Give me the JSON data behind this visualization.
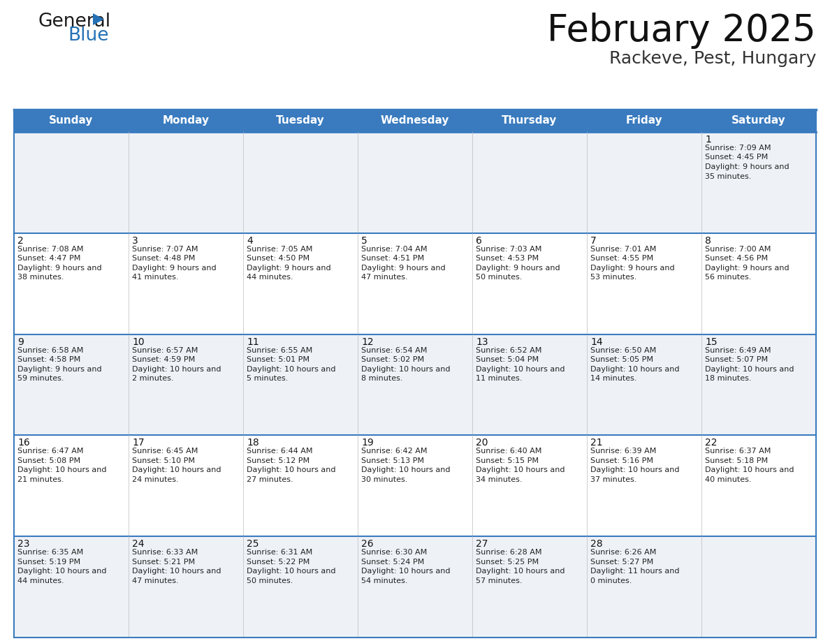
{
  "title": "February 2025",
  "subtitle": "Rackeve, Pest, Hungary",
  "header_bg": "#3a7bbf",
  "header_text": "#ffffff",
  "row_bg_even": "#eef2f7",
  "row_bg_odd": "#ffffff",
  "border_color": "#3a7bbf",
  "cell_border_color": "#3a7bbf",
  "day_headers": [
    "Sunday",
    "Monday",
    "Tuesday",
    "Wednesday",
    "Thursday",
    "Friday",
    "Saturday"
  ],
  "calendar_data": [
    [
      null,
      null,
      null,
      null,
      null,
      null,
      {
        "day": 1,
        "sunrise": "7:09 AM",
        "sunset": "4:45 PM",
        "daylight": "9 hours and 35 minutes."
      }
    ],
    [
      {
        "day": 2,
        "sunrise": "7:08 AM",
        "sunset": "4:47 PM",
        "daylight": "9 hours and 38 minutes."
      },
      {
        "day": 3,
        "sunrise": "7:07 AM",
        "sunset": "4:48 PM",
        "daylight": "9 hours and 41 minutes."
      },
      {
        "day": 4,
        "sunrise": "7:05 AM",
        "sunset": "4:50 PM",
        "daylight": "9 hours and 44 minutes."
      },
      {
        "day": 5,
        "sunrise": "7:04 AM",
        "sunset": "4:51 PM",
        "daylight": "9 hours and 47 minutes."
      },
      {
        "day": 6,
        "sunrise": "7:03 AM",
        "sunset": "4:53 PM",
        "daylight": "9 hours and 50 minutes."
      },
      {
        "day": 7,
        "sunrise": "7:01 AM",
        "sunset": "4:55 PM",
        "daylight": "9 hours and 53 minutes."
      },
      {
        "day": 8,
        "sunrise": "7:00 AM",
        "sunset": "4:56 PM",
        "daylight": "9 hours and 56 minutes."
      }
    ],
    [
      {
        "day": 9,
        "sunrise": "6:58 AM",
        "sunset": "4:58 PM",
        "daylight": "9 hours and 59 minutes."
      },
      {
        "day": 10,
        "sunrise": "6:57 AM",
        "sunset": "4:59 PM",
        "daylight": "10 hours and 2 minutes."
      },
      {
        "day": 11,
        "sunrise": "6:55 AM",
        "sunset": "5:01 PM",
        "daylight": "10 hours and 5 minutes."
      },
      {
        "day": 12,
        "sunrise": "6:54 AM",
        "sunset": "5:02 PM",
        "daylight": "10 hours and 8 minutes."
      },
      {
        "day": 13,
        "sunrise": "6:52 AM",
        "sunset": "5:04 PM",
        "daylight": "10 hours and 11 minutes."
      },
      {
        "day": 14,
        "sunrise": "6:50 AM",
        "sunset": "5:05 PM",
        "daylight": "10 hours and 14 minutes."
      },
      {
        "day": 15,
        "sunrise": "6:49 AM",
        "sunset": "5:07 PM",
        "daylight": "10 hours and 18 minutes."
      }
    ],
    [
      {
        "day": 16,
        "sunrise": "6:47 AM",
        "sunset": "5:08 PM",
        "daylight": "10 hours and 21 minutes."
      },
      {
        "day": 17,
        "sunrise": "6:45 AM",
        "sunset": "5:10 PM",
        "daylight": "10 hours and 24 minutes."
      },
      {
        "day": 18,
        "sunrise": "6:44 AM",
        "sunset": "5:12 PM",
        "daylight": "10 hours and 27 minutes."
      },
      {
        "day": 19,
        "sunrise": "6:42 AM",
        "sunset": "5:13 PM",
        "daylight": "10 hours and 30 minutes."
      },
      {
        "day": 20,
        "sunrise": "6:40 AM",
        "sunset": "5:15 PM",
        "daylight": "10 hours and 34 minutes."
      },
      {
        "day": 21,
        "sunrise": "6:39 AM",
        "sunset": "5:16 PM",
        "daylight": "10 hours and 37 minutes."
      },
      {
        "day": 22,
        "sunrise": "6:37 AM",
        "sunset": "5:18 PM",
        "daylight": "10 hours and 40 minutes."
      }
    ],
    [
      {
        "day": 23,
        "sunrise": "6:35 AM",
        "sunset": "5:19 PM",
        "daylight": "10 hours and 44 minutes."
      },
      {
        "day": 24,
        "sunrise": "6:33 AM",
        "sunset": "5:21 PM",
        "daylight": "10 hours and 47 minutes."
      },
      {
        "day": 25,
        "sunrise": "6:31 AM",
        "sunset": "5:22 PM",
        "daylight": "10 hours and 50 minutes."
      },
      {
        "day": 26,
        "sunrise": "6:30 AM",
        "sunset": "5:24 PM",
        "daylight": "10 hours and 54 minutes."
      },
      {
        "day": 27,
        "sunrise": "6:28 AM",
        "sunset": "5:25 PM",
        "daylight": "10 hours and 57 minutes."
      },
      {
        "day": 28,
        "sunrise": "6:26 AM",
        "sunset": "5:27 PM",
        "daylight": "11 hours and 0 minutes."
      },
      null
    ]
  ],
  "logo_color_general": "#1a1a1a",
  "logo_color_blue": "#2472b5",
  "logo_triangle_color": "#2472b5",
  "title_fontsize": 38,
  "subtitle_fontsize": 18,
  "header_fontsize": 11,
  "day_num_fontsize": 10,
  "info_fontsize": 8
}
